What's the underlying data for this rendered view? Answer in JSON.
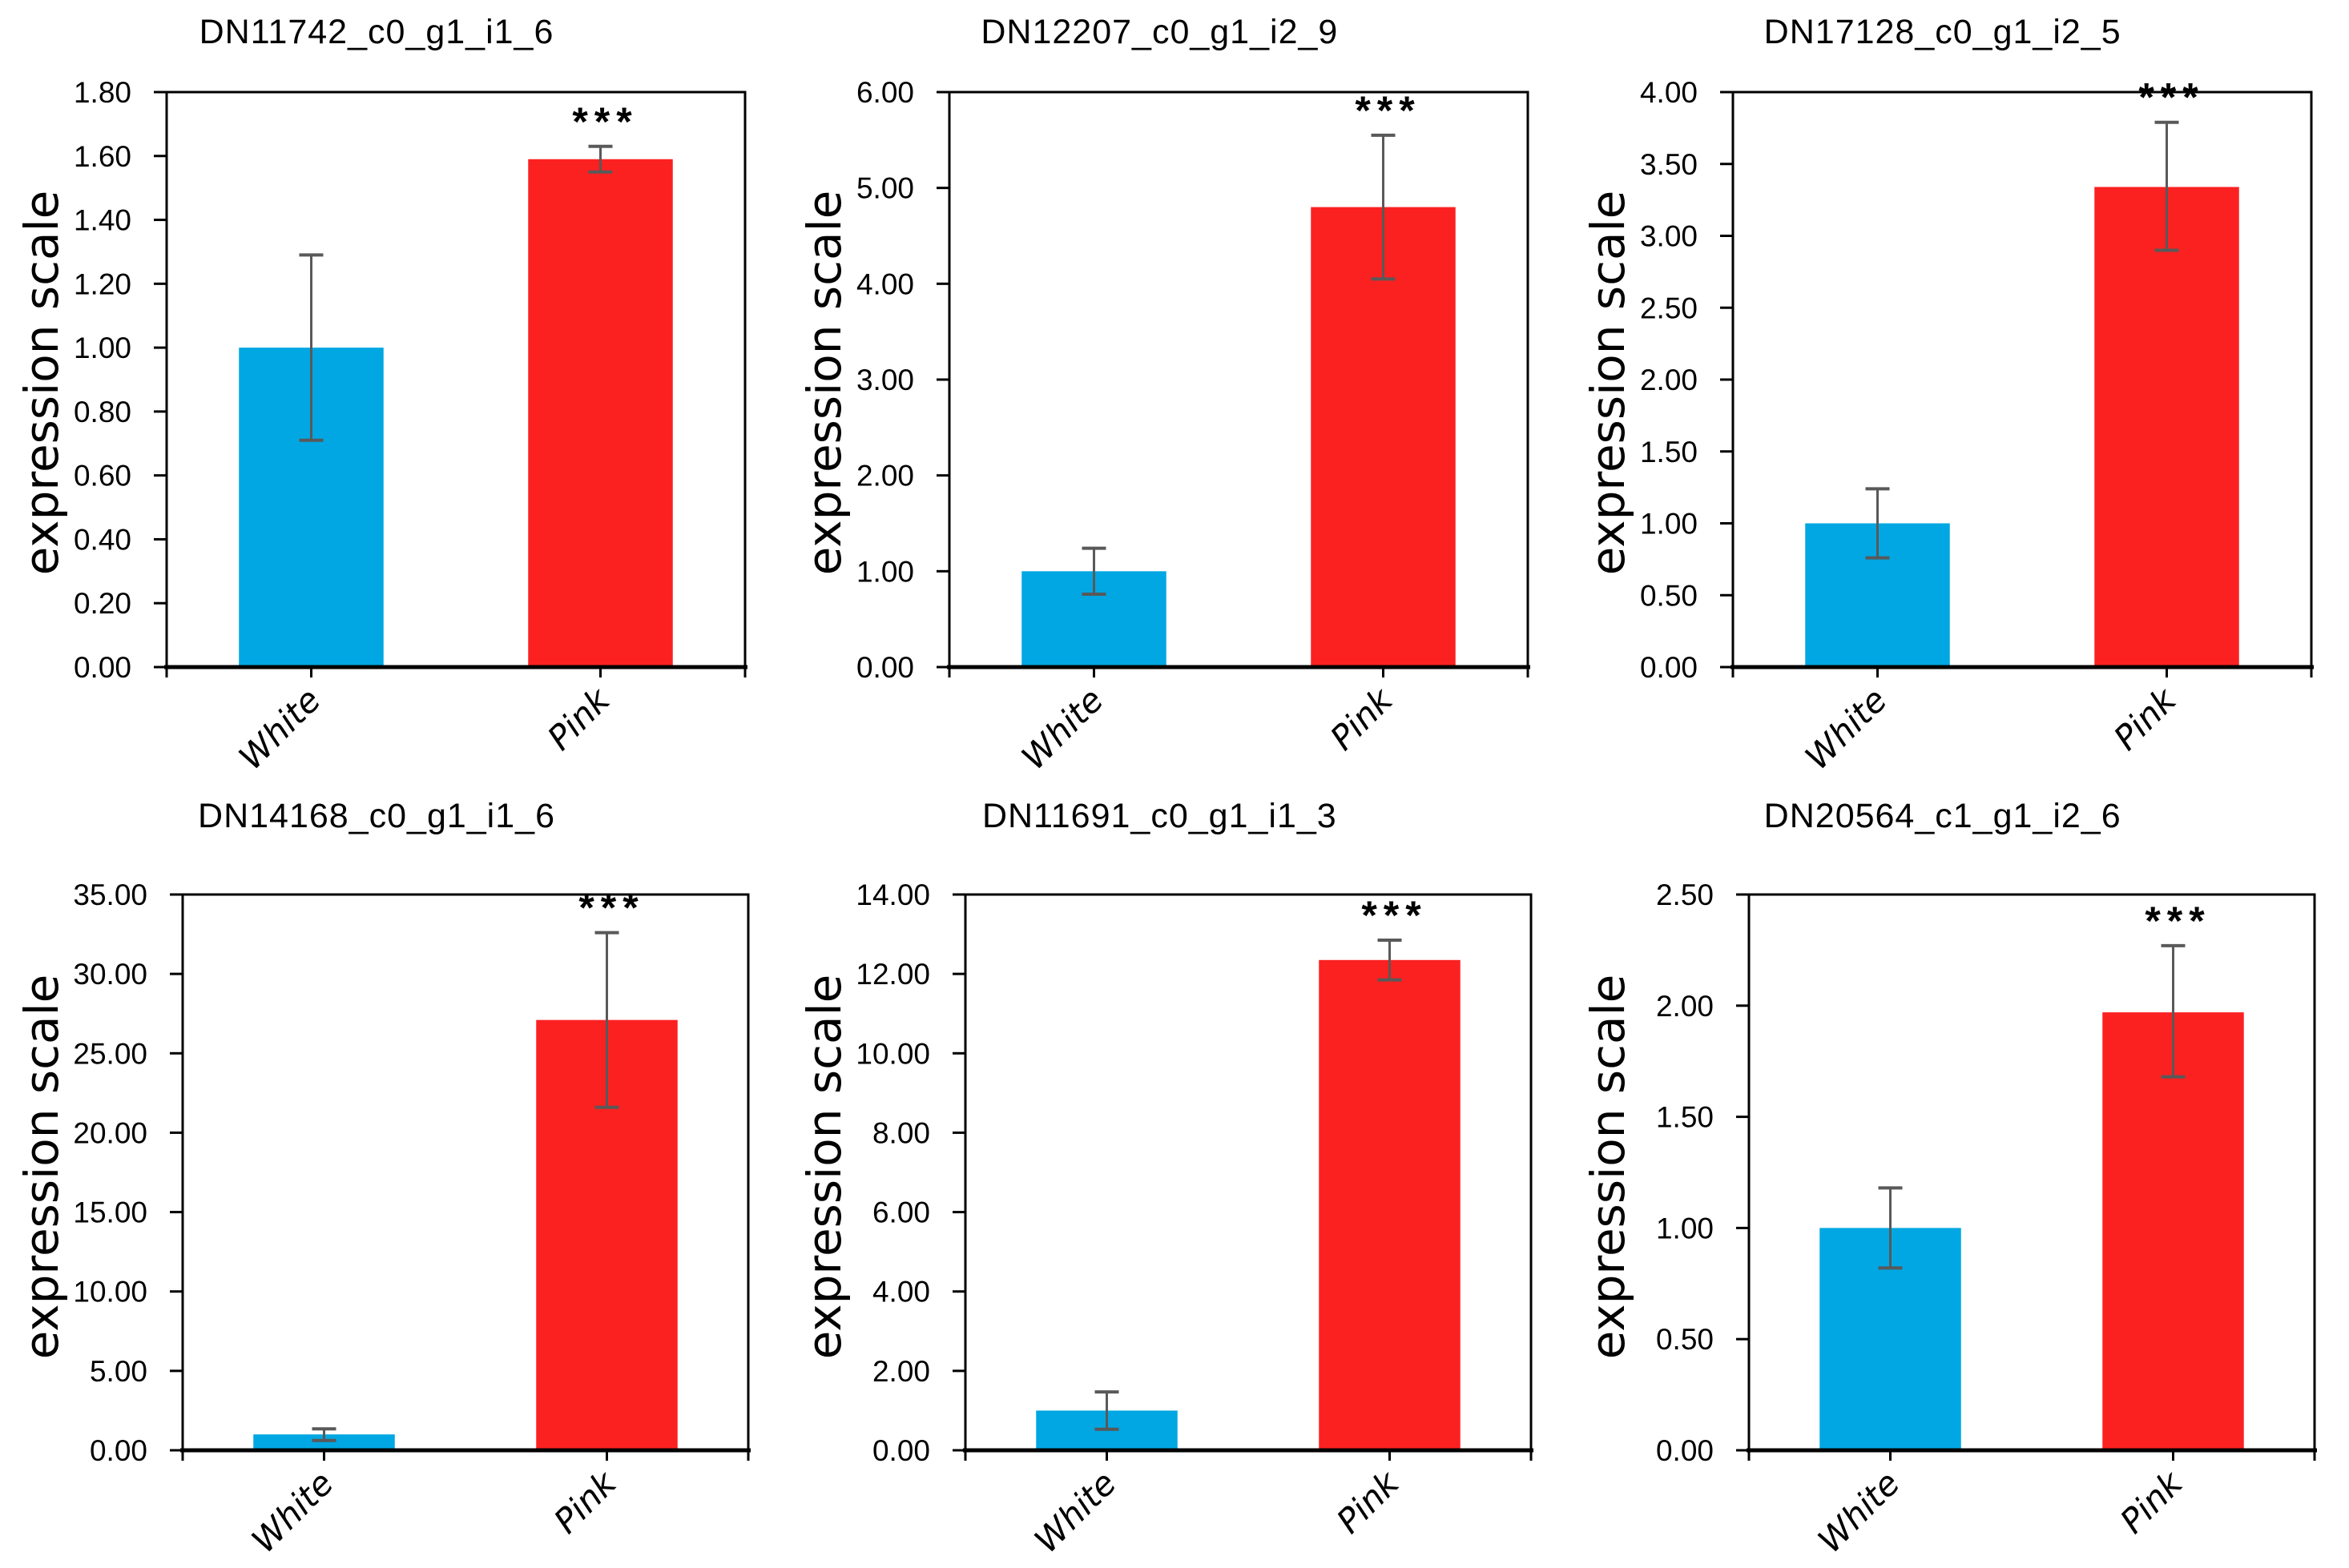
{
  "figure": {
    "ylabel": "expression scale",
    "categories": [
      "White",
      "Pink"
    ],
    "colors": {
      "white_bar": "#00A7E2",
      "pink_bar": "#FB2121",
      "error_bar": "#595959",
      "axis": "#000000"
    },
    "significance_marker": "***"
  },
  "chart_data": [
    {
      "type": "bar",
      "title": "DN11742_c0_g1_i1_6",
      "ylabel": "expression scale",
      "categories": [
        "White",
        "Pink"
      ],
      "values": [
        1.0,
        1.59
      ],
      "error_low": [
        0.71,
        1.55
      ],
      "error_high": [
        1.29,
        1.63
      ],
      "bar_colors": [
        "#00A7E2",
        "#FB2121"
      ],
      "ylim": [
        0,
        1.8
      ],
      "ytick_step": 0.2,
      "ytick_decimals": 2,
      "grid": false,
      "legend": "none",
      "annotations": [
        {
          "category": "Pink",
          "text": "***"
        }
      ]
    },
    {
      "type": "bar",
      "title": "DN12207_c0_g1_i2_9",
      "ylabel": "expression scale",
      "categories": [
        "White",
        "Pink"
      ],
      "values": [
        1.0,
        4.8
      ],
      "error_low": [
        0.76,
        4.05
      ],
      "error_high": [
        1.24,
        5.55
      ],
      "bar_colors": [
        "#00A7E2",
        "#FB2121"
      ],
      "ylim": [
        0,
        6.0
      ],
      "ytick_step": 1.0,
      "ytick_decimals": 2,
      "grid": false,
      "legend": "none",
      "annotations": [
        {
          "category": "Pink",
          "text": "***"
        }
      ]
    },
    {
      "type": "bar",
      "title": "DN17128_c0_g1_i2_5",
      "ylabel": "expression scale",
      "categories": [
        "White",
        "Pink"
      ],
      "values": [
        1.0,
        3.34
      ],
      "error_low": [
        0.76,
        2.9
      ],
      "error_high": [
        1.24,
        3.79
      ],
      "bar_colors": [
        "#00A7E2",
        "#FB2121"
      ],
      "ylim": [
        0,
        4.0
      ],
      "ytick_step": 0.5,
      "ytick_decimals": 2,
      "grid": false,
      "legend": "none",
      "annotations": [
        {
          "category": "Pink",
          "text": "***"
        }
      ]
    },
    {
      "type": "bar",
      "title": "DN14168_c0_g1_i1_6",
      "ylabel": "expression scale",
      "categories": [
        "White",
        "Pink"
      ],
      "values": [
        1.0,
        27.1
      ],
      "error_low": [
        0.62,
        21.6
      ],
      "error_high": [
        1.35,
        32.6
      ],
      "bar_colors": [
        "#00A7E2",
        "#FB2121"
      ],
      "ylim": [
        0,
        35.0
      ],
      "ytick_step": 5.0,
      "ytick_decimals": 2,
      "grid": false,
      "legend": "none",
      "annotations": [
        {
          "category": "Pink",
          "text": "***"
        }
      ]
    },
    {
      "type": "bar",
      "title": "DN11691_c0_g1_i1_3",
      "ylabel": "expression scale",
      "categories": [
        "White",
        "Pink"
      ],
      "values": [
        1.0,
        12.35
      ],
      "error_low": [
        0.53,
        11.85
      ],
      "error_high": [
        1.47,
        12.85
      ],
      "bar_colors": [
        "#00A7E2",
        "#FB2121"
      ],
      "ylim": [
        0,
        14.0
      ],
      "ytick_step": 2.0,
      "ytick_decimals": 2,
      "grid": false,
      "legend": "none",
      "annotations": [
        {
          "category": "Pink",
          "text": "***"
        }
      ]
    },
    {
      "type": "bar",
      "title": "DN20564_c1_g1_i2_6",
      "ylabel": "expression scale",
      "categories": [
        "White",
        "Pink"
      ],
      "values": [
        1.0,
        1.97
      ],
      "error_low": [
        0.82,
        1.68
      ],
      "error_high": [
        1.18,
        2.27
      ],
      "bar_colors": [
        "#00A7E2",
        "#FB2121"
      ],
      "ylim": [
        0,
        2.5
      ],
      "ytick_step": 0.5,
      "ytick_decimals": 2,
      "grid": false,
      "legend": "none",
      "annotations": [
        {
          "category": "Pink",
          "text": "***"
        }
      ]
    }
  ]
}
